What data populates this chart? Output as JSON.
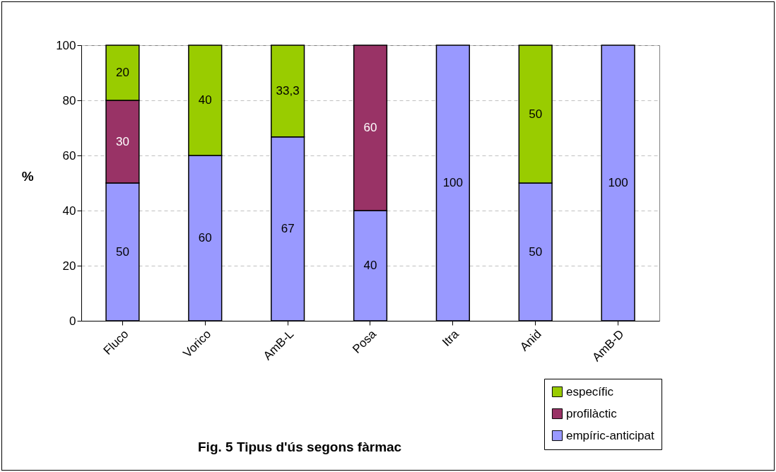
{
  "chart_data": {
    "type": "bar",
    "stacked": true,
    "title": "Fig. 5  Tipus d'ús segons fàrmac",
    "ylabel": "%",
    "categories": [
      "Fluco",
      "Vorico",
      "AmB-L",
      "Posa",
      "Itra",
      "Anid",
      "AmB-D"
    ],
    "series": [
      {
        "name": "empíric-anticipat",
        "color": "#9999ff",
        "values": [
          50,
          60,
          66.7,
          40,
          100,
          50,
          100
        ],
        "value_labels": [
          "50",
          "60",
          "67",
          "40",
          "100",
          "50",
          "100"
        ]
      },
      {
        "name": "profilàctic",
        "color": "#993366",
        "values": [
          30,
          null,
          null,
          60,
          null,
          null,
          null
        ],
        "value_labels": [
          "30",
          null,
          null,
          "60",
          null,
          null,
          null
        ]
      },
      {
        "name": "específic",
        "color": "#99cc00",
        "values": [
          20,
          40,
          33.3,
          null,
          null,
          50,
          null
        ],
        "value_labels": [
          "20",
          "40",
          "33,3",
          null,
          null,
          "50",
          null
        ]
      }
    ],
    "ylim": [
      0,
      100
    ],
    "yticks": [
      0,
      20,
      40,
      60,
      80,
      100
    ],
    "grid": "y",
    "legend": "bottom right"
  }
}
